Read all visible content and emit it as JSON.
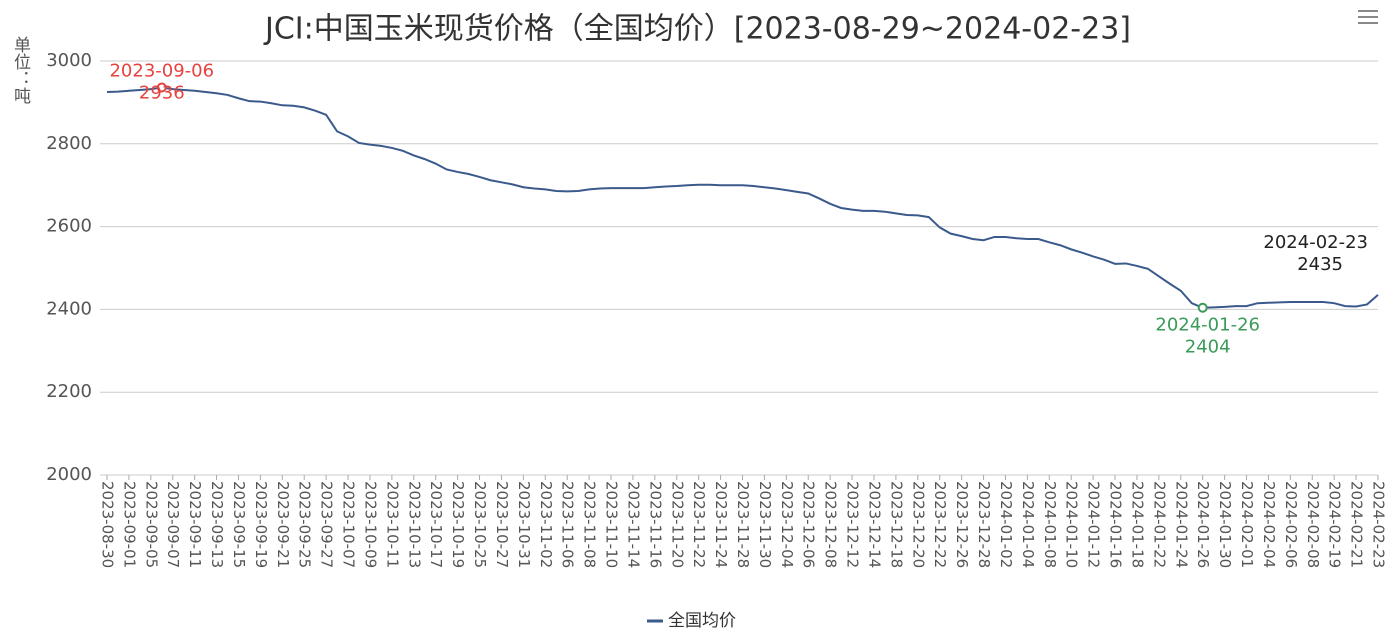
{
  "chart_data": {
    "type": "line",
    "title": "JCI:中国玉米现货价格（全国均价）[2023-08-29~2024-02-23]",
    "y_label": "单位：吨",
    "categories": [
      "2023-08-30",
      null,
      "2023-09-01",
      null,
      "2023-09-05",
      null,
      "2023-09-07",
      null,
      "2023-09-11",
      null,
      "2023-09-13",
      null,
      "2023-09-15",
      null,
      "2023-09-19",
      null,
      "2023-09-21",
      null,
      "2023-09-25",
      null,
      "2023-09-27",
      null,
      "2023-10-07",
      null,
      "2023-10-09",
      null,
      "2023-10-11",
      null,
      "2023-10-13",
      null,
      "2023-10-17",
      null,
      "2023-10-19",
      null,
      "2023-10-25",
      null,
      "2023-10-27",
      null,
      "2023-10-31",
      null,
      "2023-11-02",
      null,
      "2023-11-06",
      null,
      "2023-11-08",
      null,
      "2023-11-10",
      null,
      "2023-11-14",
      null,
      "2023-11-16",
      null,
      "2023-11-20",
      null,
      "2023-11-22",
      null,
      "2023-11-24",
      null,
      "2023-11-28",
      null,
      "2023-11-30",
      null,
      "2023-12-04",
      null,
      "2023-12-06",
      null,
      "2023-12-08",
      null,
      "2023-12-12",
      null,
      "2023-12-14",
      null,
      "2023-12-18",
      null,
      "2023-12-20",
      null,
      "2023-12-22",
      null,
      "2023-12-26",
      null,
      "2023-12-28",
      null,
      "2024-01-02",
      null,
      "2024-01-04",
      null,
      "2024-01-08",
      null,
      "2024-01-10",
      null,
      "2024-01-12",
      null,
      "2024-01-16",
      null,
      "2024-01-18",
      null,
      "2024-01-22",
      null,
      "2024-01-24",
      null,
      "2024-01-26",
      null,
      "2024-01-30",
      null,
      "2024-02-01",
      null,
      "2024-02-04",
      null,
      "2024-02-06",
      null,
      "2024-02-08",
      null,
      "2024-02-19",
      null,
      "2024-02-21",
      null,
      "2024-02-23"
    ],
    "series": [
      {
        "name": "全国均价",
        "color": "#3b5a8c",
        "values": [
          2925,
          2926,
          2928,
          2930,
          2932,
          2936,
          2932,
          2930,
          2928,
          2925,
          2922,
          2918,
          2910,
          2903,
          2902,
          2898,
          2893,
          2892,
          2888,
          2880,
          2870,
          2830,
          2818,
          2802,
          2798,
          2795,
          2790,
          2783,
          2772,
          2763,
          2752,
          2738,
          2732,
          2727,
          2720,
          2712,
          2707,
          2702,
          2695,
          2692,
          2690,
          2686,
          2685,
          2686,
          2690,
          2692,
          2693,
          2693,
          2693,
          2693,
          2695,
          2697,
          2698,
          2700,
          2701,
          2701,
          2700,
          2700,
          2700,
          2698,
          2695,
          2692,
          2688,
          2684,
          2680,
          2668,
          2655,
          2645,
          2641,
          2638,
          2638,
          2636,
          2632,
          2628,
          2627,
          2623,
          2598,
          2583,
          2577,
          2570,
          2567,
          2575,
          2575,
          2572,
          2570,
          2570,
          2562,
          2555,
          2545,
          2537,
          2528,
          2520,
          2510,
          2511,
          2505,
          2498,
          2480,
          2462,
          2445,
          2415,
          2404,
          2405,
          2406,
          2408,
          2408,
          2415,
          2416,
          2417,
          2418,
          2418,
          2418,
          2418,
          2415,
          2408,
          2407,
          2412,
          2435
        ]
      }
    ],
    "markers": [
      {
        "kind": "max",
        "date": "2023-09-06",
        "color": "#e8423f"
      },
      {
        "kind": "min",
        "date": "2024-01-26",
        "color": "#3a9a5a"
      },
      {
        "kind": "last",
        "date": "2024-02-23",
        "color": "#222222"
      }
    ],
    "ylim": [
      2000,
      3000
    ],
    "yticks": [
      2000,
      2200,
      2400,
      2600,
      2800,
      3000
    ],
    "grid": true,
    "legend": "bottom"
  }
}
